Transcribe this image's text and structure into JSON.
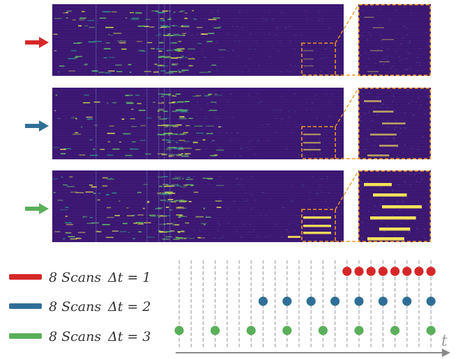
{
  "colors": {
    "red": "#d62728",
    "blue": "#2f6f97",
    "green": "#5aaf5a",
    "heatmap_bg": "#3b1772",
    "heatmap_hot": "#f4e15a",
    "zoom_box": "#f0961f",
    "axis": "#8a8a8a"
  },
  "panels": [
    {
      "id": "red",
      "arrow_color": "red",
      "intensity": 0.15
    },
    {
      "id": "blue",
      "arrow_color": "blue",
      "intensity": 0.5
    },
    {
      "id": "green",
      "arrow_color": "green",
      "intensity": 1.0
    }
  ],
  "legend": [
    {
      "color": "red",
      "scans": "8 Scans",
      "delta": "Δt = 1"
    },
    {
      "color": "blue",
      "scans": "8 Scans",
      "delta": "Δt = 2"
    },
    {
      "color": "green",
      "scans": "8 Scans",
      "delta": "Δt = 3"
    }
  ],
  "timeline": {
    "axis_label": "t",
    "tick_count": 22,
    "red_ticks": [
      14,
      15,
      16,
      17,
      18,
      19,
      20,
      21
    ],
    "blue_ticks": [
      7,
      9,
      11,
      13,
      15,
      17,
      19,
      21
    ],
    "green_ticks": [
      0,
      3,
      6,
      9,
      12,
      15,
      18,
      21
    ]
  }
}
